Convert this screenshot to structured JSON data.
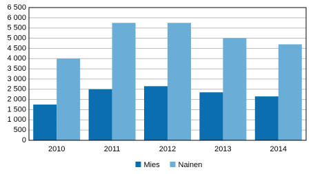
{
  "chart_data": {
    "type": "bar",
    "categories": [
      "2010",
      "2011",
      "2012",
      "2013",
      "2014"
    ],
    "series": [
      {
        "name": "Mies",
        "color": "#0b6faf",
        "values": [
          1750,
          2500,
          2650,
          2350,
          2150
        ]
      },
      {
        "name": "Nainen",
        "color": "#6aaed7",
        "values": [
          4000,
          5750,
          5750,
          5000,
          4700
        ]
      }
    ],
    "ylim": [
      0,
      6500
    ],
    "yticks": [
      0,
      500,
      {
        "value": 1000,
        "label": "1 000"
      },
      {
        "value": 1500,
        "label": "1 500"
      },
      {
        "value": 2000,
        "label": "2 000"
      },
      {
        "value": 2500,
        "label": "2 500"
      },
      {
        "value": 3000,
        "label": "3 000"
      },
      {
        "value": 3500,
        "label": "3 500"
      },
      {
        "value": 4000,
        "label": "4 000"
      },
      {
        "value": 4500,
        "label": "4 500"
      },
      {
        "value": 5000,
        "label": "5 000"
      },
      {
        "value": 5500,
        "label": "5 500"
      },
      {
        "value": 6000,
        "label": "6 000"
      },
      {
        "value": 6500,
        "label": "6 500"
      }
    ],
    "grid": true,
    "legend": "bottom"
  }
}
